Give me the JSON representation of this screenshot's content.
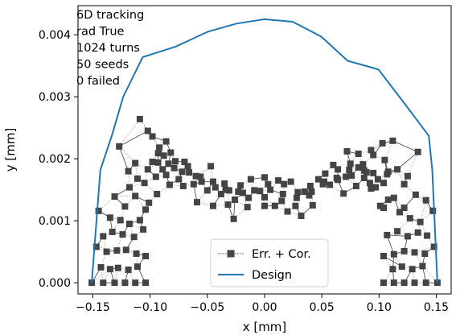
{
  "chart_data": {
    "type": "scatter",
    "title": "",
    "xlabel": "x [mm]",
    "ylabel": "y [mm]",
    "xlim": [
      -0.163,
      0.163
    ],
    "ylim": [
      -0.00018,
      0.00447
    ],
    "xticks": [
      -0.15,
      -0.1,
      -0.05,
      0.0,
      0.05,
      0.1,
      0.15
    ],
    "xtick_labels": [
      "−0.15",
      "−0.10",
      "−0.05",
      "0.00",
      "0.05",
      "0.10",
      "0.15"
    ],
    "yticks": [
      0.0,
      0.001,
      0.002,
      0.003,
      0.004
    ],
    "ytick_labels": [
      "0.000",
      "0.001",
      "0.002",
      "0.003",
      "0.004"
    ],
    "grid": false,
    "legend_position": "lower-center",
    "annotation_lines": [
      "6D tracking",
      "rad True",
      "1024 turns",
      "50 seeds",
      "0 failed"
    ],
    "series": [
      {
        "name": "Design",
        "kind": "line",
        "color": "#1f77b4",
        "x": [
          -0.151,
          -0.1485,
          -0.1435,
          -0.1335,
          -0.1235,
          -0.1065,
          -0.0775,
          -0.0495,
          -0.0245,
          0.0,
          0.0245,
          0.0495,
          0.0725,
          0.0995,
          0.1215,
          0.1435,
          0.1465,
          0.151
        ],
        "y": [
          0.0,
          0.0006,
          0.00182,
          0.00237,
          0.003,
          0.00364,
          0.00381,
          0.00405,
          0.00418,
          0.00425,
          0.00421,
          0.00397,
          0.00358,
          0.00344,
          0.00291,
          0.00237,
          0.00182,
          0.0
        ]
      },
      {
        "name": "Err. + Cor.",
        "kind": "scatter",
        "color": "#444444",
        "marker": "square",
        "x": [
          -0.151,
          -0.1485,
          -0.1435,
          -0.1335,
          -0.1235,
          -0.1135,
          -0.1065,
          -0.0995,
          -0.0895,
          -0.0775,
          -0.0645,
          -0.0495,
          -0.0375,
          -0.0245,
          -0.0125,
          0.0,
          0.0125,
          0.0245,
          0.0375,
          0.0495,
          0.0645,
          0.0725,
          0.0855,
          0.0995,
          0.1105,
          0.1215,
          0.1335,
          0.1435,
          0.1465,
          0.151,
          -0.151,
          -0.1465,
          -0.1385,
          -0.1285,
          -0.1185,
          -0.1085,
          -0.1015,
          -0.0965,
          -0.0855,
          -0.0735,
          -0.0625,
          -0.0485,
          -0.0365,
          -0.0245,
          -0.0125,
          0.0,
          0.0125,
          0.0245,
          0.0375,
          0.0485,
          0.0605,
          0.0725,
          0.0855,
          0.0985,
          0.1085,
          0.1185,
          0.1285,
          0.1385,
          0.1465,
          0.151,
          -0.151,
          -0.1435,
          -0.1365,
          -0.1265,
          -0.1165,
          -0.1065,
          -0.0985,
          -0.0925,
          -0.0825,
          -0.0705,
          -0.0585,
          -0.0465,
          -0.0345,
          -0.0225,
          -0.0105,
          0.0,
          0.0105,
          0.0225,
          0.0345,
          0.0465,
          0.0585,
          0.0705,
          0.0825,
          0.0925,
          0.1065,
          0.1165,
          0.1265,
          0.1365,
          0.1435,
          0.151,
          -0.151,
          -0.1435,
          -0.1335,
          -0.1235,
          -0.1135,
          -0.1065,
          -0.0985,
          -0.0885,
          -0.0775,
          -0.0585,
          -0.0445,
          -0.0285,
          -0.0165,
          -0.0045,
          0.0085,
          0.0205,
          0.0305,
          0.0445,
          0.0585,
          0.0725,
          0.0885,
          0.0985,
          0.1085,
          0.1185,
          0.1285,
          0.1385,
          0.1465,
          0.151,
          -0.151,
          -0.1435,
          -0.1335,
          -0.1235,
          -0.1135,
          -0.1035,
          -0.0925,
          -0.0805,
          -0.0665,
          -0.0525,
          -0.0405,
          -0.0285,
          -0.0165,
          0.0,
          0.0165,
          0.0285,
          0.0405,
          0.0525,
          0.0665,
          0.0805,
          0.0925,
          0.1035,
          0.1135,
          0.1235,
          0.1335,
          0.1435,
          0.151
        ],
        "y": [
          0.0,
          0.0,
          0.0,
          0.0,
          0.0,
          0.0,
          0.0,
          0.0001,
          0.0,
          0.0,
          0.0,
          0.0,
          0.0,
          0.0,
          0.0,
          0.0,
          0.0,
          0.0,
          0.0,
          0.0,
          0.0,
          0.0,
          0.0,
          0.0,
          0.0,
          0.0,
          0.0,
          0.0,
          0.0,
          0.0,
          0.00058,
          0.00115,
          0.00122,
          0.00132,
          0.0014,
          0.00141,
          0.00142,
          0.00138,
          0.00148,
          0.00155,
          0.00142,
          0.00128,
          0.00115,
          0.00102,
          0.00112,
          0.00125,
          0.00113,
          0.00108,
          0.00103,
          0.00113,
          0.00128,
          0.00142,
          0.00158,
          0.00155,
          0.00148,
          0.00142,
          0.00138,
          0.00132,
          0.00118,
          0.00058,
          0.0,
          0.00045,
          0.0005,
          0.0005,
          0.0005,
          0.0005,
          0.00045,
          0.0005,
          0.0006,
          0.0004,
          0.0004,
          0.0005,
          0.0004,
          0.0004,
          0.0004,
          0.0004,
          0.0004,
          0.0004,
          0.0004,
          0.0005,
          0.0004,
          0.0004,
          0.0006,
          0.0005,
          0.00045,
          0.0005,
          0.0005,
          0.0005,
          0.00045,
          0.0,
          0.0,
          0.0003,
          0.0003,
          0.0003,
          0.0003,
          0.00035,
          0.0003,
          0.00025,
          0.00025,
          0.00025,
          0.0003,
          0.0002,
          0.0002,
          0.0002,
          0.0002,
          0.0002,
          0.0002,
          0.0002,
          0.0003,
          0.00025,
          0.00025,
          0.00025,
          0.0003,
          0.00035,
          0.0003,
          0.0003,
          0.0003,
          0.0,
          0.0,
          0.0,
          0.0,
          0.0,
          0.0,
          0.0,
          0.0,
          0.0,
          0.0,
          0.0,
          0.0,
          0.0,
          0.0,
          0.0,
          0.0,
          0.0,
          0.0,
          0.0,
          0.0,
          0.0,
          0.0,
          0.0,
          0.0,
          0.0,
          0.0,
          0.0,
          0.0
        ]
      }
    ],
    "scatter_points": [
      [
        -0.151,
        0.0
      ],
      [
        -0.141,
        0.0
      ],
      [
        -0.131,
        0.0
      ],
      [
        -0.122,
        0.0
      ],
      [
        -0.113,
        0.0
      ],
      [
        -0.104,
        0.0
      ],
      [
        0.104,
        0.0
      ],
      [
        0.113,
        0.0
      ],
      [
        0.122,
        0.0
      ],
      [
        0.131,
        0.0
      ],
      [
        0.141,
        0.0
      ],
      [
        0.151,
        0.0
      ],
      [
        -0.147,
        0.00058
      ],
      [
        -0.138,
        0.0005
      ],
      [
        -0.129,
        0.00052
      ],
      [
        -0.121,
        0.00053
      ],
      [
        -0.112,
        0.00047
      ],
      [
        -0.104,
        0.00043
      ],
      [
        0.104,
        0.00043
      ],
      [
        0.113,
        0.00046
      ],
      [
        0.122,
        0.00051
      ],
      [
        0.131,
        0.00049
      ],
      [
        0.14,
        0.00047
      ],
      [
        0.148,
        0.00058
      ],
      [
        -0.143,
        0.00025
      ],
      [
        -0.135,
        0.00022
      ],
      [
        -0.128,
        0.00024
      ],
      [
        -0.119,
        0.00021
      ],
      [
        -0.111,
        0.00026
      ],
      [
        0.112,
        0.00022
      ],
      [
        0.12,
        0.00026
      ],
      [
        0.129,
        0.00022
      ],
      [
        0.138,
        0.00027
      ],
      [
        -0.141,
        0.00075
      ],
      [
        -0.133,
        0.00082
      ],
      [
        -0.124,
        0.00078
      ],
      [
        -0.114,
        0.00074
      ],
      [
        -0.106,
        0.00086
      ],
      [
        0.107,
        0.00077
      ],
      [
        0.116,
        0.00083
      ],
      [
        0.125,
        0.00075
      ],
      [
        0.134,
        0.00081
      ],
      [
        0.142,
        0.00076
      ],
      [
        -0.145,
        0.00116
      ],
      [
        -0.135,
        0.00105
      ],
      [
        -0.126,
        0.00101
      ],
      [
        -0.118,
        0.00095
      ],
      [
        -0.109,
        0.00101
      ],
      [
        -0.101,
        0.00129
      ],
      [
        0.101,
        0.00124
      ],
      [
        0.108,
        0.00134
      ],
      [
        0.118,
        0.00114
      ],
      [
        0.127,
        0.00104
      ],
      [
        0.136,
        0.00098
      ],
      [
        0.147,
        0.00116
      ],
      [
        -0.131,
        0.00139
      ],
      [
        -0.122,
        0.00123
      ],
      [
        -0.113,
        0.0014
      ],
      [
        -0.104,
        0.00118
      ],
      [
        0.104,
        0.00121
      ],
      [
        0.113,
        0.00137
      ],
      [
        0.122,
        0.00121
      ],
      [
        0.132,
        0.00142
      ],
      [
        0.141,
        0.00133
      ],
      [
        -0.127,
        0.0022
      ],
      [
        -0.119,
        0.0018
      ],
      [
        -0.111,
        0.00168
      ],
      [
        -0.102,
        0.00183
      ],
      [
        -0.094,
        0.00143
      ],
      [
        0.097,
        0.00154
      ],
      [
        0.107,
        0.00175
      ],
      [
        0.116,
        0.00183
      ],
      [
        0.125,
        0.00172
      ],
      [
        0.134,
        0.00211
      ],
      [
        -0.118,
        0.00154
      ],
      [
        -0.109,
        0.00264
      ],
      [
        -0.098,
        0.00236
      ],
      [
        -0.086,
        0.00228
      ],
      [
        -0.075,
        0.00167
      ],
      [
        0.072,
        0.00212
      ],
      [
        0.082,
        0.00208
      ],
      [
        0.093,
        0.00214
      ],
      [
        0.103,
        0.00225
      ],
      [
        0.112,
        0.00229
      ],
      [
        0.122,
        0.00159
      ],
      [
        -0.113,
        0.00193
      ],
      [
        -0.102,
        0.00245
      ],
      [
        -0.092,
        0.00218
      ],
      [
        -0.082,
        0.0021
      ],
      [
        -0.07,
        0.00195
      ],
      [
        -0.06,
        0.00172
      ],
      [
        -0.047,
        0.00188
      ],
      [
        -0.035,
        0.0016
      ],
      [
        -0.023,
        0.00147
      ],
      [
        -0.012,
        0.00167
      ],
      [
        0.0,
        0.0017
      ],
      [
        0.012,
        0.00165
      ],
      [
        0.023,
        0.00163
      ],
      [
        0.035,
        0.00147
      ],
      [
        0.047,
        0.00167
      ],
      [
        0.06,
        0.0019
      ],
      [
        0.071,
        0.00171
      ],
      [
        0.082,
        0.00186
      ],
      [
        0.093,
        0.00152
      ],
      [
        0.105,
        0.00198
      ],
      [
        -0.105,
        0.00161
      ],
      [
        -0.093,
        0.00194
      ],
      [
        -0.084,
        0.00192
      ],
      [
        -0.072,
        0.00179
      ],
      [
        -0.062,
        0.00159
      ],
      [
        -0.05,
        0.00149
      ],
      [
        -0.038,
        0.00143
      ],
      [
        -0.026,
        0.00134
      ],
      [
        -0.014,
        0.00137
      ],
      [
        -0.004,
        0.00148
      ],
      [
        0.005,
        0.0015
      ],
      [
        0.016,
        0.00143
      ],
      [
        0.028,
        0.00137
      ],
      [
        0.04,
        0.00156
      ],
      [
        0.052,
        0.00163
      ],
      [
        0.063,
        0.00169
      ],
      [
        0.074,
        0.00182
      ],
      [
        0.086,
        0.00191
      ],
      [
        0.095,
        0.00177
      ],
      [
        0.108,
        0.00179
      ],
      [
        -0.098,
        0.00195
      ],
      [
        -0.088,
        0.00205
      ],
      [
        -0.078,
        0.00196
      ],
      [
        -0.067,
        0.00188
      ],
      [
        -0.056,
        0.00171
      ],
      [
        -0.045,
        0.00163
      ],
      [
        -0.034,
        0.0015
      ],
      [
        -0.021,
        0.00157
      ],
      [
        -0.009,
        0.00149
      ],
      [
        0.003,
        0.00159
      ],
      [
        0.017,
        0.00159
      ],
      [
        0.029,
        0.00146
      ],
      [
        0.041,
        0.00147
      ],
      [
        0.053,
        0.00176
      ],
      [
        0.064,
        0.00183
      ],
      [
        0.075,
        0.00192
      ],
      [
        0.087,
        0.00181
      ],
      [
        0.099,
        0.00167
      ],
      [
        -0.095,
        0.00171
      ],
      [
        -0.083,
        0.00158
      ],
      [
        -0.071,
        0.00156
      ],
      [
        -0.059,
        0.0013
      ],
      [
        -0.045,
        0.00124
      ],
      [
        -0.032,
        0.00126
      ],
      [
        -0.027,
        0.00103
      ],
      [
        -0.015,
        0.00122
      ],
      [
        0.0,
        0.00124
      ],
      [
        0.009,
        0.00124
      ],
      [
        0.02,
        0.00115
      ],
      [
        0.032,
        0.00108
      ],
      [
        0.042,
        0.00125
      ],
      [
        0.057,
        0.00158
      ],
      [
        0.069,
        0.00144
      ],
      [
        0.08,
        0.00156
      ],
      [
        0.092,
        0.00161
      ],
      [
        0.104,
        0.00161
      ],
      [
        -0.089,
        0.00183
      ],
      [
        -0.079,
        0.00185
      ],
      [
        -0.066,
        0.00178
      ],
      [
        -0.055,
        0.00163
      ],
      [
        -0.043,
        0.00154
      ],
      [
        -0.031,
        0.00149
      ],
      [
        -0.019,
        0.00145
      ],
      [
        0.0,
        0.00138
      ],
      [
        0.015,
        0.00132
      ],
      [
        0.027,
        0.00124
      ],
      [
        0.039,
        0.00141
      ],
      [
        0.051,
        0.00159
      ],
      [
        0.064,
        0.00166
      ],
      [
        0.076,
        0.00173
      ],
      [
        0.089,
        0.00178
      ],
      [
        -0.093,
        0.00209
      ],
      [
        -0.086,
        0.00174
      ],
      [
        0.087,
        0.00169
      ],
      [
        0.095,
        0.00206
      ]
    ]
  },
  "legend": {
    "scatter_label": "Err. + Cor.",
    "line_label": "Design"
  }
}
